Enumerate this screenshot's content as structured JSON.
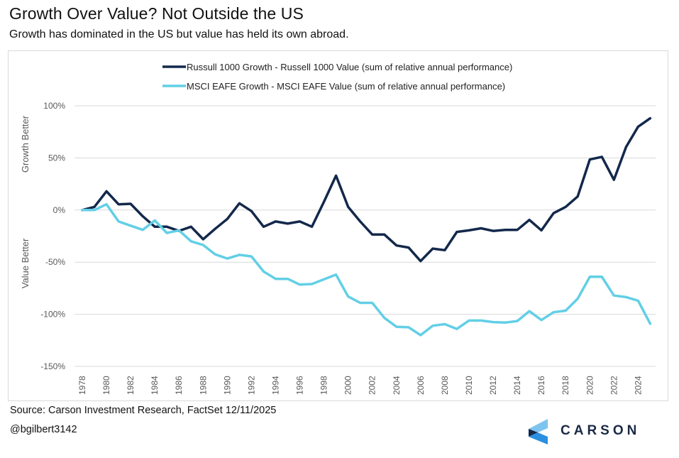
{
  "header": {
    "title": "Growth Over Value? Not Outside the US",
    "subtitle": "Growth has dominated in the US but value has held its own abroad."
  },
  "footer": {
    "source": "Source: Carson Investment Research, FactSet 12/11/2025",
    "handle": "@bgilbert3142",
    "logo_text": "CARSON",
    "logo_icon": "carson-chevron-logo"
  },
  "chart_data": {
    "type": "line",
    "title": "Growth Over Value? Not Outside the US",
    "subtitle": "Growth has dominated in the US but value has held its own abroad.",
    "xlabel": "",
    "ylabel_top": "Growth Better",
    "ylabel_bottom": "Value Better",
    "ylim": [
      -150,
      100
    ],
    "yticks": [
      100,
      50,
      0,
      -50,
      -100,
      -150
    ],
    "ytick_labels": [
      "100%",
      "50%",
      "0%",
      "-50%",
      "-100%",
      "-150%"
    ],
    "xticks": [
      1978,
      1980,
      1982,
      1984,
      1986,
      1988,
      1990,
      1992,
      1994,
      1996,
      1998,
      2000,
      2002,
      2004,
      2006,
      2008,
      2010,
      2012,
      2014,
      2016,
      2018,
      2020,
      2022,
      2024
    ],
    "grid": true,
    "legend_position": "top-center",
    "x": [
      1978,
      1979,
      1980,
      1981,
      1982,
      1983,
      1984,
      1985,
      1986,
      1987,
      1988,
      1989,
      1990,
      1991,
      1992,
      1993,
      1994,
      1995,
      1996,
      1997,
      1998,
      1999,
      2000,
      2001,
      2002,
      2003,
      2004,
      2005,
      2006,
      2007,
      2008,
      2009,
      2010,
      2011,
      2012,
      2013,
      2014,
      2015,
      2016,
      2017,
      2018,
      2019,
      2020,
      2021,
      2022,
      2023,
      2024,
      2025
    ],
    "series": [
      {
        "name": "Russull 1000 Growth - Russell 1000 Value (sum of relative annual performance)",
        "color": "#13284b",
        "values": [
          0,
          3,
          18,
          5.5,
          6,
          -6,
          -16,
          -16,
          -20,
          -16,
          -28,
          -18,
          -8.5,
          6.5,
          -1,
          -16,
          -11,
          -13,
          -11,
          -16,
          8,
          33,
          3,
          -11,
          -23.5,
          -23.5,
          -34,
          -36,
          -49,
          -37,
          -38.5,
          -21,
          -19.5,
          -17.5,
          -20,
          -19,
          -19,
          -9.5,
          -19.5,
          -3,
          3,
          13,
          48.5,
          51,
          29,
          60.5,
          80,
          88
        ]
      },
      {
        "name": "MSCI EAFE Growth - MSCI EAFE Value (sum of relative annual performance)",
        "color": "#62cfe6",
        "values": [
          0,
          0,
          5.5,
          -11,
          -15,
          -19,
          -10,
          -22,
          -19.5,
          -30,
          -33.5,
          -42.5,
          -46.5,
          -43,
          -44.5,
          -59,
          -66,
          -66,
          -71.5,
          -71,
          -66.5,
          -62,
          -83,
          -89,
          -89,
          -103.5,
          -112,
          -112.5,
          -120,
          -111,
          -109.5,
          -114,
          -106,
          -106,
          -107.5,
          -108,
          -106.5,
          -97,
          -105.5,
          -98,
          -96.5,
          -85,
          -64,
          -64,
          -82,
          -83.5,
          -87,
          -109
        ]
      }
    ]
  }
}
